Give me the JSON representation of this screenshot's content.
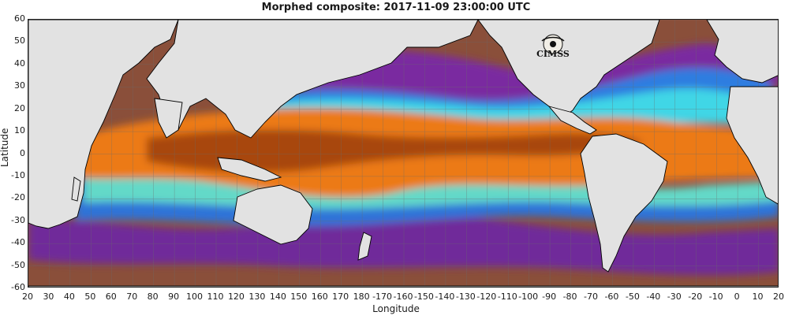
{
  "title": "Morphed composite: 2017-11-09 23:00:00 UTC",
  "axes": {
    "xlabel": "Longitude",
    "ylabel": "Latitude",
    "x_ticks": [
      "20",
      "30",
      "40",
      "50",
      "60",
      "70",
      "80",
      "90",
      "100",
      "110",
      "120",
      "130",
      "140",
      "150",
      "160",
      "170",
      "180",
      "-170",
      "-160",
      "-150",
      "-140",
      "-130",
      "-120",
      "-110",
      "-100",
      "-90",
      "-80",
      "-70",
      "-60",
      "-50",
      "-40",
      "-30",
      "-20",
      "-10",
      "0",
      "10",
      "20"
    ],
    "y_ticks": [
      "60",
      "50",
      "40",
      "30",
      "20",
      "10",
      "0",
      "-10",
      "-20",
      "-30",
      "-40",
      "-50",
      "-60"
    ],
    "lon_range": [
      20,
      380
    ],
    "lat_range": [
      -60,
      60
    ],
    "grid": true
  },
  "logo": {
    "text": "CIMSS"
  },
  "colors": {
    "land": "#e2e2e2",
    "coast": "#000000",
    "dry": "#8f4f33",
    "purple": "#7a2aa0",
    "blue": "#2f7de0",
    "cyan": "#3fd6e6",
    "green": "#93e39a",
    "orange": "#ec7a12",
    "dark_orange": "#a8470a"
  }
}
